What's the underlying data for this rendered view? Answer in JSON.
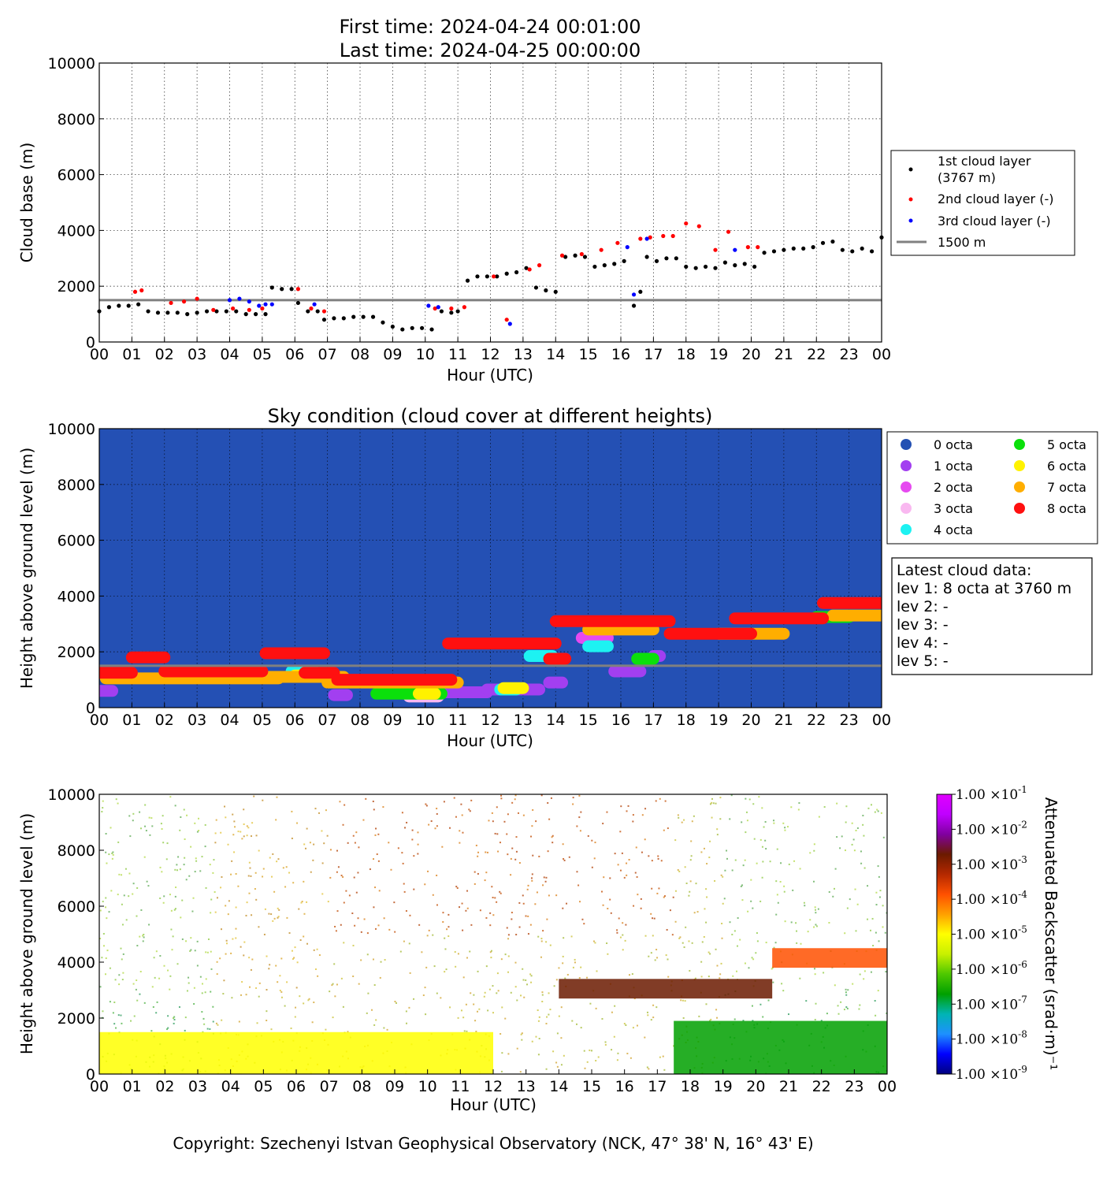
{
  "header": {
    "first_time": "First time: 2024-04-24 00:01:00",
    "last_time": "Last time: 2024-04-25 00:00:00"
  },
  "copyright": "Copyright: Szechenyi Istvan Geophysical Observatory (NCK, 47° 38' N, 16° 43' E)",
  "hour_ticks": [
    "00",
    "01",
    "02",
    "03",
    "04",
    "05",
    "06",
    "07",
    "08",
    "09",
    "10",
    "11",
    "12",
    "13",
    "14",
    "15",
    "16",
    "17",
    "18",
    "19",
    "20",
    "21",
    "22",
    "23",
    "00"
  ],
  "height_ticks": [
    "0",
    "2000",
    "4000",
    "6000",
    "8000",
    "10000"
  ],
  "chart_data": [
    {
      "type": "scatter",
      "title": "",
      "xlabel": "Hour (UTC)",
      "ylabel": "Cloud base (m)",
      "xlim": [
        0,
        24
      ],
      "ylim": [
        0,
        10000
      ],
      "grid": true,
      "legend_placement": "right",
      "reference_line": {
        "label": "1500 m",
        "y": 1500,
        "color": "#808080"
      },
      "series": [
        {
          "name": "1st cloud layer",
          "name_line2": "(3767 m)",
          "color": "#000000",
          "x": [
            0.0,
            0.3,
            0.6,
            0.9,
            1.2,
            1.5,
            1.8,
            2.1,
            2.4,
            2.7,
            3.0,
            3.3,
            3.6,
            3.9,
            4.2,
            4.5,
            4.8,
            5.1,
            5.3,
            5.6,
            5.9,
            6.1,
            6.4,
            6.7,
            6.9,
            7.2,
            7.5,
            7.8,
            8.1,
            8.4,
            8.7,
            9.0,
            9.3,
            9.6,
            9.9,
            10.2,
            10.5,
            10.8,
            11.0,
            11.3,
            11.6,
            11.9,
            12.2,
            12.5,
            12.8,
            13.1,
            13.4,
            13.7,
            14.0,
            14.3,
            14.6,
            14.9,
            15.2,
            15.5,
            15.8,
            16.1,
            16.4,
            16.6,
            16.8,
            17.1,
            17.4,
            17.7,
            18.0,
            18.3,
            18.6,
            18.9,
            19.2,
            19.5,
            19.8,
            20.1,
            20.4,
            20.7,
            21.0,
            21.3,
            21.6,
            21.9,
            22.2,
            22.5,
            22.8,
            23.1,
            23.4,
            23.7,
            24.0
          ],
          "y": [
            1100,
            1250,
            1300,
            1300,
            1350,
            1100,
            1050,
            1050,
            1050,
            1000,
            1050,
            1100,
            1100,
            1100,
            1100,
            1000,
            1000,
            1000,
            1950,
            1900,
            1900,
            1400,
            1100,
            1100,
            800,
            850,
            850,
            900,
            900,
            900,
            700,
            550,
            450,
            500,
            500,
            450,
            1100,
            1050,
            1100,
            2200,
            2350,
            2350,
            2350,
            2450,
            2500,
            2650,
            1950,
            1850,
            1800,
            3050,
            3100,
            3050,
            2700,
            2750,
            2800,
            2900,
            1300,
            1800,
            3050,
            2900,
            3000,
            3000,
            2700,
            2650,
            2700,
            2650,
            2850,
            2750,
            2800,
            2700,
            3200,
            3250,
            3300,
            3350,
            3350,
            3400,
            3550,
            3600,
            3300,
            3250,
            3350,
            3250,
            3750
          ]
        },
        {
          "name": "2nd cloud layer (-)",
          "color": "#ff0000",
          "x": [
            1.1,
            1.3,
            2.2,
            2.6,
            3.0,
            3.5,
            4.1,
            4.6,
            5.0,
            6.1,
            6.5,
            6.9,
            10.3,
            10.8,
            11.2,
            12.1,
            12.5,
            13.2,
            13.5,
            14.2,
            14.8,
            15.4,
            15.9,
            16.6,
            16.9,
            17.3,
            17.6,
            18.0,
            18.4,
            18.9,
            19.3,
            19.9,
            20.2
          ],
          "y": [
            1800,
            1850,
            1400,
            1450,
            1550,
            1150,
            1200,
            1150,
            1200,
            1900,
            1200,
            1100,
            1200,
            1200,
            1250,
            2350,
            800,
            2600,
            2750,
            3100,
            3150,
            3300,
            3550,
            3700,
            3750,
            3800,
            3800,
            4250,
            4150,
            3300,
            3950,
            3400,
            3400
          ]
        },
        {
          "name": "3rd cloud layer (-)",
          "color": "#0000ff",
          "x": [
            4.0,
            4.3,
            4.6,
            4.9,
            5.1,
            5.3,
            6.6,
            10.1,
            10.4,
            12.6,
            16.2,
            16.4,
            16.8,
            19.5
          ],
          "y": [
            1500,
            1550,
            1450,
            1300,
            1350,
            1350,
            1350,
            1300,
            1250,
            650,
            3400,
            1700,
            3700,
            3300
          ]
        }
      ]
    },
    {
      "type": "scatter",
      "title": "Sky condition (cloud cover at different heights)",
      "xlabel": "Hour (UTC)",
      "ylabel": "Height above ground level (m)",
      "xlim": [
        0,
        24
      ],
      "ylim": [
        0,
        10000
      ],
      "grid": true,
      "background": "#2450b4",
      "legend_placement": "right",
      "reference_line": {
        "y": 1500,
        "color": "#808080"
      },
      "octa_legend": [
        {
          "label": "0 octa",
          "color": "#2451b3"
        },
        {
          "label": "1 octa",
          "color": "#a23ff0"
        },
        {
          "label": "2 octa",
          "color": "#e64af0"
        },
        {
          "label": "3 octa",
          "color": "#f9b8f0"
        },
        {
          "label": "4 octa",
          "color": "#1df2f2"
        },
        {
          "label": "5 octa",
          "color": "#0be00b"
        },
        {
          "label": "6 octa",
          "color": "#fff200"
        },
        {
          "label": "7 octa",
          "color": "#ffae00"
        },
        {
          "label": "8 octa",
          "color": "#ff1010"
        }
      ],
      "segments": [
        {
          "octa": 8,
          "x_start": 0.0,
          "x_end": 1.0,
          "y": 1250
        },
        {
          "octa": 8,
          "x_start": 1.0,
          "x_end": 2.0,
          "y": 1800
        },
        {
          "octa": 8,
          "x_start": 2.0,
          "x_end": 5.0,
          "y": 1300
        },
        {
          "octa": 8,
          "x_start": 5.1,
          "x_end": 6.9,
          "y": 1950
        },
        {
          "octa": 8,
          "x_start": 6.3,
          "x_end": 7.2,
          "y": 1250
        },
        {
          "octa": 8,
          "x_start": 7.3,
          "x_end": 10.8,
          "y": 1000
        },
        {
          "octa": 8,
          "x_start": 10.7,
          "x_end": 14.0,
          "y": 2300
        },
        {
          "octa": 8,
          "x_start": 14.0,
          "x_end": 17.5,
          "y": 3100
        },
        {
          "octa": 8,
          "x_start": 17.5,
          "x_end": 20.0,
          "y": 2650
        },
        {
          "octa": 8,
          "x_start": 19.5,
          "x_end": 22.2,
          "y": 3200
        },
        {
          "octa": 8,
          "x_start": 22.2,
          "x_end": 24.0,
          "y": 3750
        },
        {
          "octa": 8,
          "x_start": 13.8,
          "x_end": 14.3,
          "y": 1750
        },
        {
          "octa": 7,
          "x_start": 0.2,
          "x_end": 5.5,
          "y": 1050
        },
        {
          "octa": 7,
          "x_start": 5.0,
          "x_end": 7.5,
          "y": 1100
        },
        {
          "octa": 7,
          "x_start": 7.0,
          "x_end": 11.0,
          "y": 900
        },
        {
          "octa": 7,
          "x_start": 15.0,
          "x_end": 17.0,
          "y": 2800
        },
        {
          "octa": 7,
          "x_start": 19.0,
          "x_end": 21.0,
          "y": 2650
        },
        {
          "octa": 7,
          "x_start": 22.5,
          "x_end": 24.0,
          "y": 3300
        },
        {
          "octa": 6,
          "x_start": 6.0,
          "x_end": 7.0,
          "y": 1150
        },
        {
          "octa": 6,
          "x_start": 12.4,
          "x_end": 13.0,
          "y": 700
        },
        {
          "octa": 6,
          "x_start": 9.8,
          "x_end": 10.3,
          "y": 500
        },
        {
          "octa": 5,
          "x_start": 8.5,
          "x_end": 10.5,
          "y": 500
        },
        {
          "octa": 5,
          "x_start": 16.5,
          "x_end": 17.0,
          "y": 1750
        },
        {
          "octa": 5,
          "x_start": 22.0,
          "x_end": 23.0,
          "y": 3250
        },
        {
          "octa": 4,
          "x_start": 13.2,
          "x_end": 13.9,
          "y": 1850
        },
        {
          "octa": 4,
          "x_start": 15.0,
          "x_end": 15.6,
          "y": 2200
        },
        {
          "octa": 4,
          "x_start": 5.9,
          "x_end": 6.6,
          "y": 1300
        },
        {
          "octa": 4,
          "x_start": 12.3,
          "x_end": 12.8,
          "y": 650
        },
        {
          "octa": 3,
          "x_start": 9.5,
          "x_end": 10.4,
          "y": 400
        },
        {
          "octa": 2,
          "x_start": 14.8,
          "x_end": 15.6,
          "y": 2500
        },
        {
          "octa": 1,
          "x_start": 0.0,
          "x_end": 0.4,
          "y": 600
        },
        {
          "octa": 1,
          "x_start": 7.2,
          "x_end": 7.6,
          "y": 450
        },
        {
          "octa": 1,
          "x_start": 10.5,
          "x_end": 11.9,
          "y": 550
        },
        {
          "octa": 1,
          "x_start": 11.9,
          "x_end": 13.5,
          "y": 650
        },
        {
          "octa": 1,
          "x_start": 13.8,
          "x_end": 14.2,
          "y": 900
        },
        {
          "octa": 1,
          "x_start": 15.8,
          "x_end": 16.6,
          "y": 1300
        },
        {
          "octa": 1,
          "x_start": 17.0,
          "x_end": 17.2,
          "y": 1850
        }
      ],
      "latest_cloud_data": {
        "title": "Latest cloud data:",
        "lines": [
          "lev 1: 8 octa at 3760 m",
          "lev 2: -",
          "lev 3: -",
          "lev 4: -",
          "lev 5: -"
        ]
      }
    },
    {
      "type": "heatmap",
      "title": "",
      "xlabel": "Hour (UTC)",
      "ylabel": "Height above ground level (m)",
      "xlim": [
        0,
        24
      ],
      "ylim": [
        0,
        10000
      ],
      "colorbar": {
        "label": "Attenuated Backscatter (srad·m)⁻¹",
        "scale": "log",
        "range": [
          1e-09,
          0.1
        ],
        "ticks": [
          {
            "mant": "1.00",
            "exp": "-9"
          },
          {
            "mant": "1.00",
            "exp": "-8"
          },
          {
            "mant": "1.00",
            "exp": "-7"
          },
          {
            "mant": "1.00",
            "exp": "-6"
          },
          {
            "mant": "1.00",
            "exp": "-5"
          },
          {
            "mant": "1.00",
            "exp": "-4"
          },
          {
            "mant": "1.00",
            "exp": "-3"
          },
          {
            "mant": "1.00",
            "exp": "-2"
          },
          {
            "mant": "1.00",
            "exp": "-1"
          }
        ],
        "colors": [
          "#00007f",
          "#0000ff",
          "#1e90ff",
          "#00b4b4",
          "#00a000",
          "#4ec800",
          "#c8f000",
          "#ffff00",
          "#ffa000",
          "#ff5000",
          "#b42800",
          "#6b1a00",
          "#8000a0",
          "#c000ff",
          "#e000ff"
        ]
      },
      "features": [
        {
          "kind": "aerosol_layer",
          "x_start": 0,
          "x_end": 12,
          "y_top": 1500,
          "level": "1e-5"
        },
        {
          "kind": "cloud_layer",
          "x_start": 14,
          "x_end": 20.5,
          "y_base": 2700,
          "level": "1e-3"
        },
        {
          "kind": "cloud_layer",
          "x_start": 20.5,
          "x_end": 24,
          "y_base": 3800,
          "level": "1e-4"
        },
        {
          "kind": "boundary_layer",
          "x_start": 17.5,
          "x_end": 24,
          "y_top": 1900,
          "level": "1e-7"
        }
      ]
    }
  ]
}
